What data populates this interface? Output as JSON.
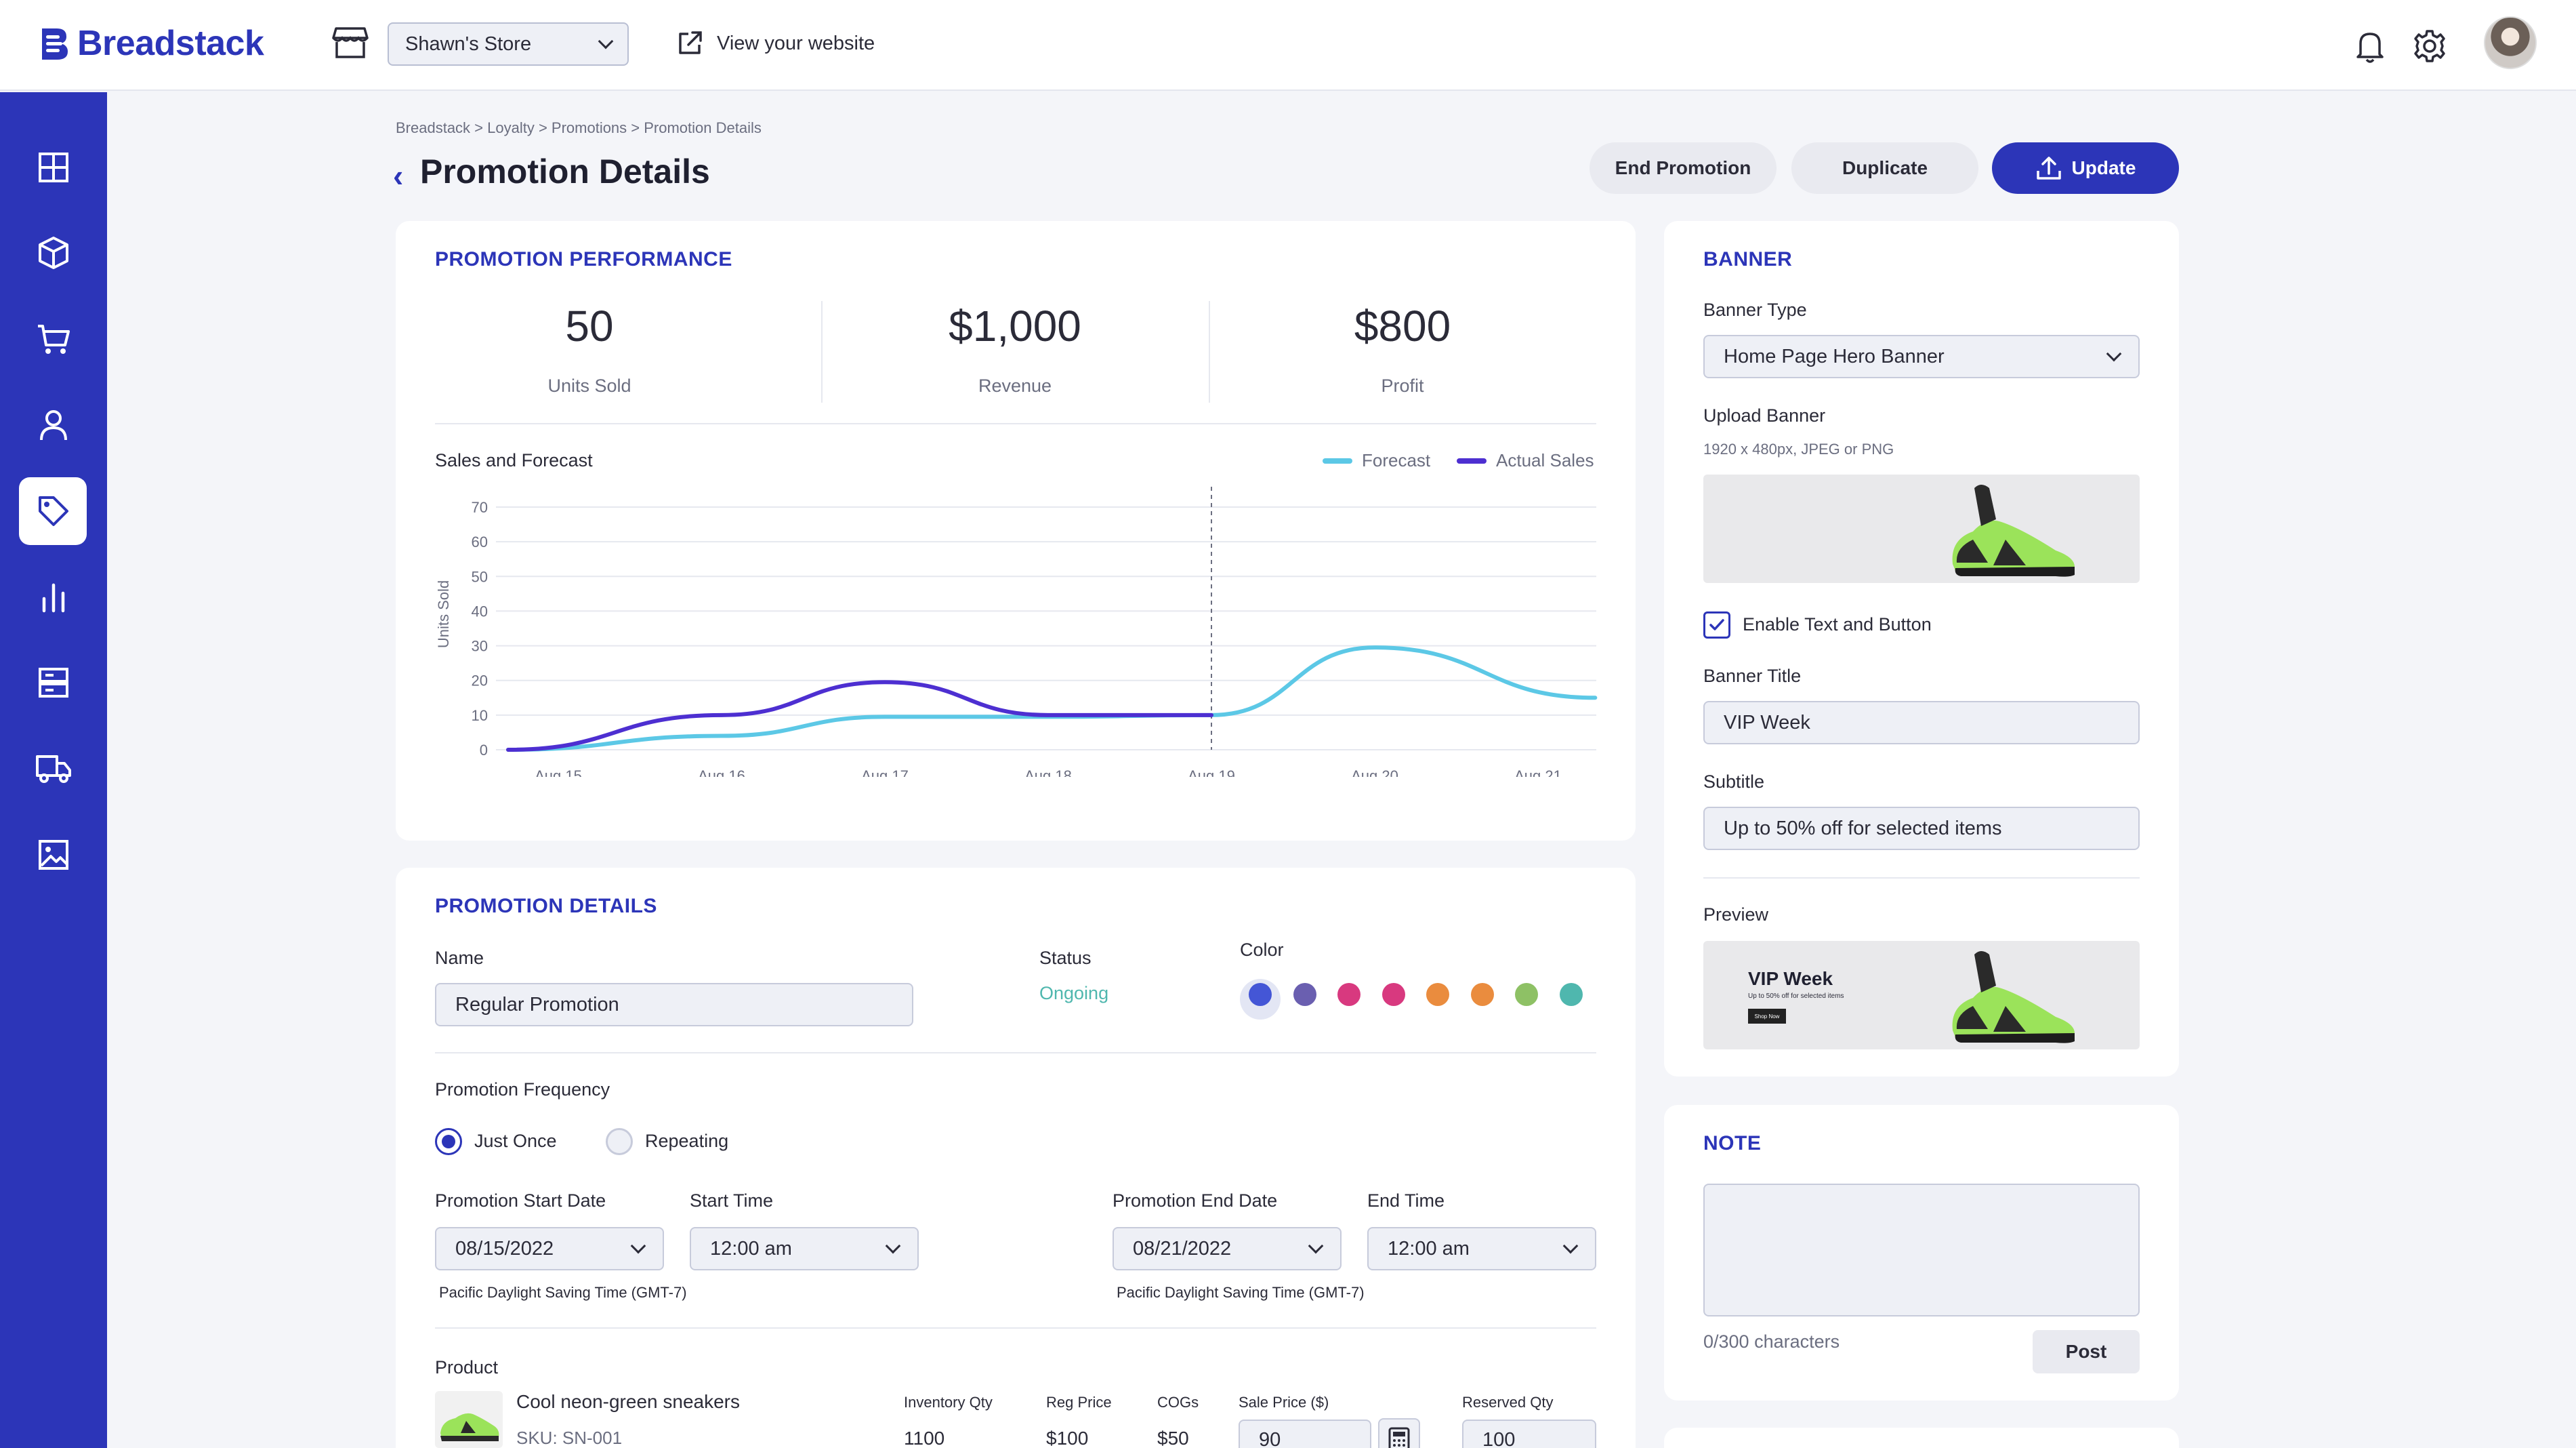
{
  "app": {
    "name": "Breadstack"
  },
  "topbar": {
    "store": "Shawn's Store",
    "view_site": "View your website",
    "icons": [
      "store-icon",
      "external-link-icon",
      "bell-icon",
      "gear-icon"
    ]
  },
  "sidebar": {
    "items": [
      {
        "name": "dashboard",
        "icon": "grid-icon"
      },
      {
        "name": "products",
        "icon": "box-icon"
      },
      {
        "name": "orders",
        "icon": "cart-icon"
      },
      {
        "name": "customers",
        "icon": "user-icon"
      },
      {
        "name": "loyalty",
        "icon": "tag-icon",
        "active": true
      },
      {
        "name": "analytics",
        "icon": "bar-chart-icon"
      },
      {
        "name": "inventory",
        "icon": "storage-icon"
      },
      {
        "name": "shipping",
        "icon": "truck-icon"
      },
      {
        "name": "media",
        "icon": "image-icon"
      }
    ]
  },
  "header": {
    "breadcrumb": "Breadstack > Loyalty > Promotions > Promotion Details",
    "title": "Promotion Details",
    "buttons": {
      "end": "End Promotion",
      "duplicate": "Duplicate",
      "update": "Update"
    }
  },
  "performance": {
    "title": "PROMOTION PERFORMANCE",
    "stats": [
      {
        "value": "50",
        "label": "Units Sold"
      },
      {
        "value": "$1,000",
        "label": "Revenue"
      },
      {
        "value": "$800",
        "label": "Profit"
      }
    ],
    "chart_title": "Sales and Forecast"
  },
  "chart_data": {
    "type": "line",
    "title": "Sales and Forecast",
    "xlabel": "",
    "ylabel": "Units Sold",
    "categories": [
      "Aug 15",
      "Aug 16",
      "Aug 17",
      "Aug 18",
      "Aug 19",
      "Aug 20",
      "Aug 21"
    ],
    "ylim": [
      0,
      70
    ],
    "yticks": [
      0,
      10,
      20,
      30,
      40,
      50,
      60,
      70
    ],
    "grid": true,
    "legend": "top-right",
    "current_marker": "Aug 19",
    "series": [
      {
        "name": "Forecast",
        "color": "#5cc8e6",
        "x": [
          0,
          1,
          2,
          3,
          4,
          5,
          6.35
        ],
        "values": [
          0,
          4,
          9.5,
          9.5,
          10,
          29.5,
          15
        ]
      },
      {
        "name": "Actual Sales",
        "color": "#4d2fd1",
        "x": [
          0,
          1,
          2,
          3,
          4
        ],
        "values": [
          0,
          10,
          19.5,
          10,
          10
        ]
      }
    ]
  },
  "details": {
    "title": "PROMOTION DETAILS",
    "name_label": "Name",
    "name_value": "Regular Promotion",
    "status_label": "Status",
    "status_value": "Ongoing",
    "color_label": "Color",
    "colors": [
      "#4456d6",
      "#6a5fb0",
      "#d8397f",
      "#d8397f",
      "#ea8c3e",
      "#ea8c3e",
      "#8ec165",
      "#4fb7ae"
    ],
    "frequency_label": "Promotion Frequency",
    "freq_once": "Just Once",
    "freq_repeat": "Repeating",
    "start_date_label": "Promotion Start Date",
    "start_date": "08/15/2022",
    "start_time_label": "Start Time",
    "start_time": "12:00 am",
    "end_date_label": "Promotion End Date",
    "end_date": "08/21/2022",
    "end_time_label": "End Time",
    "end_time": "12:00 am",
    "timezone": "Pacific Daylight Saving Time (GMT-7)",
    "product_label": "Product",
    "product": {
      "name": "Cool neon-green sneakers",
      "sku": "SKU: SN-001",
      "inventory_label": "Inventory Qty",
      "inventory": "1100",
      "reg_price_label": "Reg Price",
      "reg_price": "$100",
      "cogs_label": "COGs",
      "cogs": "$50",
      "sale_price_label": "Sale Price ($)",
      "sale_price": "90",
      "reserved_label": "Reserved Qty",
      "reserved": "100"
    }
  },
  "banner": {
    "title": "BANNER",
    "type_label": "Banner Type",
    "type_value": "Home Page Hero Banner",
    "upload_label": "Upload Banner",
    "upload_hint": "1920 x 480px, JPEG or PNG",
    "enable_label": "Enable Text and Button",
    "title_label": "Banner Title",
    "title_value": "VIP Week",
    "subtitle_label": "Subtitle",
    "subtitle_value": "Up to 50% off for selected items",
    "preview_label": "Preview",
    "preview_title": "VIP Week",
    "preview_sub": "Up to 50% off for selected items",
    "preview_btn": "Shop Now"
  },
  "note": {
    "title": "NOTE",
    "counter": "0/300 characters",
    "post": "Post"
  }
}
